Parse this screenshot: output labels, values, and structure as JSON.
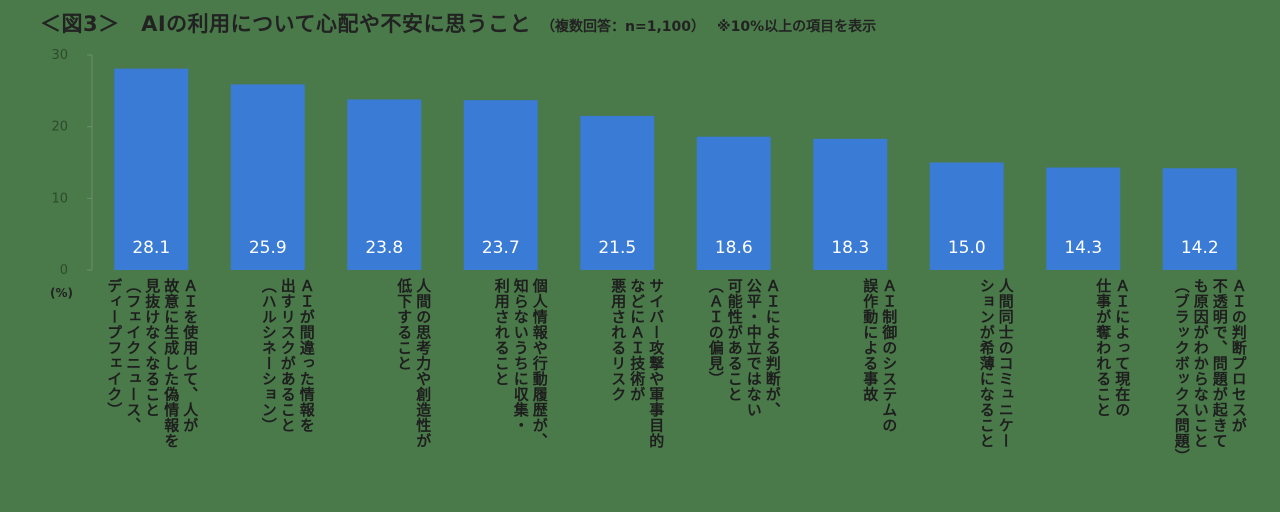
{
  "header": {
    "title": "＜図3＞　AIの利用について心配や不安に思うこと",
    "subtitle": "（複数回答：n=1,100）",
    "note": "※10%以上の項目を表示"
  },
  "chart_data": {
    "type": "bar",
    "categories": [
      "ＡＩを使用して、人が\n故意に生成した偽情報を\n見抜けなくなること\n（フェイクニュース、\nディープフェイク）",
      "ＡＩが間違った情報を\n出すリスクがあること\n（ハルシネーション）",
      "人間の思考力や創造性が\n低下すること",
      "個人情報や行動履歴が、\n知らないうちに収集・\n利用されること",
      "サイバー攻撃や軍事目的\nなどにＡＩ技術が\n悪用されるリスク",
      "ＡＩによる判断が、\n公平・中立ではない\n可能性があること\n（ＡＩの偏見）",
      "ＡＩ制御のシステムの\n誤作動による事故",
      "人間同士のコミュニケー\nションが希薄になること",
      "ＡＩによって現在の\n仕事が奪われること",
      "ＡＩの判断プロセスが\n不透明で、問題が起きて\nも原因がわからないこと\n（ブラックボックス問題）"
    ],
    "values": [
      28.1,
      25.9,
      23.8,
      23.7,
      21.5,
      18.6,
      18.3,
      15.0,
      14.3,
      14.2
    ],
    "data_labels": [
      "28.1",
      "25.9",
      "23.8",
      "23.7",
      "21.5",
      "18.6",
      "18.3",
      "15.0",
      "14.3",
      "14.2"
    ],
    "ylim": [
      0,
      30
    ],
    "yticks": [
      "0",
      "10",
      "20",
      "30"
    ],
    "y_unit_label": "(%)",
    "bar_color": "#3a7bd5",
    "grid": false
  }
}
